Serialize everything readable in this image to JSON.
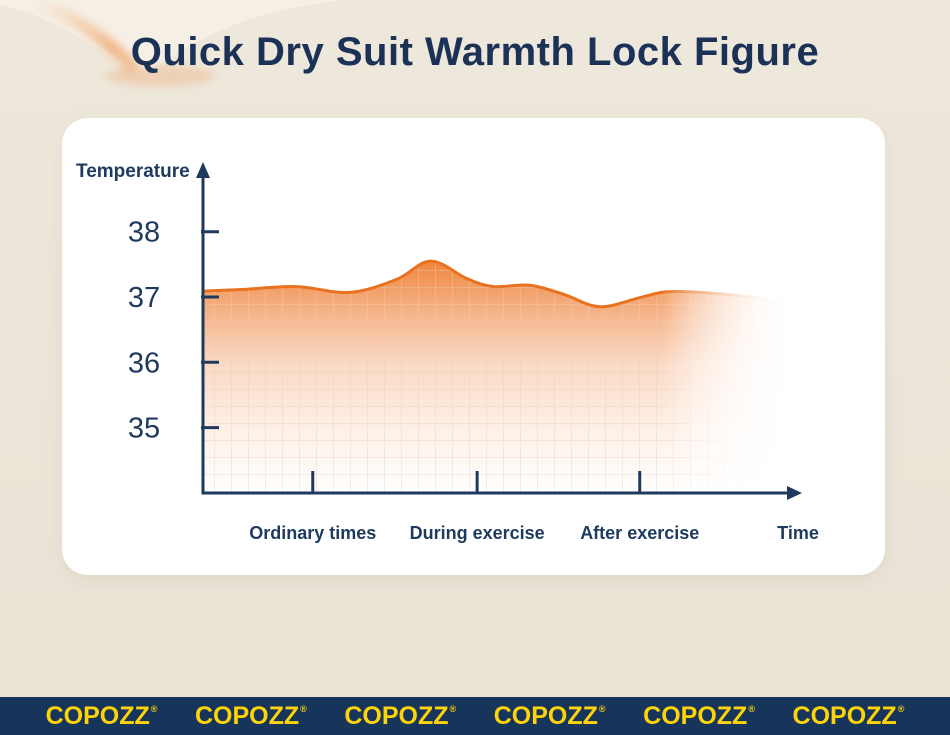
{
  "page": {
    "title": "Quick Dry Suit Warmth Lock Figure"
  },
  "chart_data": {
    "type": "area",
    "title": "Quick Dry Suit Warmth Lock Figure",
    "ylabel": "Temperature",
    "xlabel": "Time",
    "y_ticks": [
      38,
      37,
      36,
      35
    ],
    "ylim": [
      34,
      39
    ],
    "grid": true,
    "legend_position": "none",
    "x_categories": [
      {
        "label": "Ordinary times",
        "pos": 0.187
      },
      {
        "label": "During exercise",
        "pos": 0.467
      },
      {
        "label": "After exercise",
        "pos": 0.744
      }
    ],
    "points": [
      {
        "x": 0.0,
        "temp": 37.09
      },
      {
        "x": 0.075,
        "temp": 37.12
      },
      {
        "x": 0.16,
        "temp": 37.16
      },
      {
        "x": 0.25,
        "temp": 37.07
      },
      {
        "x": 0.33,
        "temp": 37.27
      },
      {
        "x": 0.388,
        "temp": 37.55
      },
      {
        "x": 0.45,
        "temp": 37.28
      },
      {
        "x": 0.495,
        "temp": 37.16
      },
      {
        "x": 0.557,
        "temp": 37.18
      },
      {
        "x": 0.615,
        "temp": 37.04
      },
      {
        "x": 0.676,
        "temp": 36.85
      },
      {
        "x": 0.744,
        "temp": 36.99
      },
      {
        "x": 0.79,
        "temp": 37.08
      },
      {
        "x": 0.85,
        "temp": 37.07
      },
      {
        "x": 0.93,
        "temp": 37.0
      },
      {
        "x": 1.0,
        "temp": 36.9
      }
    ]
  },
  "brand_bar": {
    "logo_text": "COPOZZ",
    "registered_mark": "®",
    "repeat_count": 6
  },
  "colors": {
    "page_bg": "#ece6da",
    "card_bg": "#ffffff",
    "title_navy": "#1b3156",
    "axis_navy": "#1e3a5e",
    "curve_orange": "#e8721f",
    "fill_orange_top": "#ef8438",
    "grid_line": "#eeccb9",
    "banner_bg": "#17355b",
    "banner_yellow": "#fed308"
  }
}
